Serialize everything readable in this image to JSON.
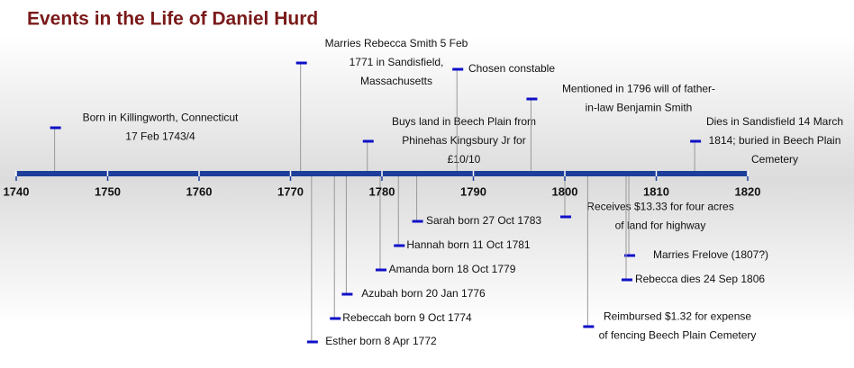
{
  "chart_data": {
    "type": "timeline",
    "title": "Events in the Life of Daniel Hurd",
    "xlim": [
      1740,
      1820
    ],
    "xticks": [
      1740,
      1750,
      1760,
      1770,
      1780,
      1790,
      1800,
      1810,
      1820
    ],
    "color": "#1c3f9a",
    "events": [
      {
        "x": 1744.2,
        "label": [
          "Born in Killingworth, Connecticut",
          "17 Feb 1743/4"
        ]
      },
      {
        "x": 1771.1,
        "label": [
          "Marries Rebecca Smith 5 Feb",
          "1771 in Sandisfield,",
          "Massachusetts"
        ]
      },
      {
        "x": 1778.4,
        "label": [
          "Buys land in Beech Plain from",
          "Phinehas Kingsbury Jr for",
          "£10/10"
        ]
      },
      {
        "x": 1788.2,
        "label": [
          "Chosen constable"
        ]
      },
      {
        "x": 1796.3,
        "label": [
          "Mentioned in 1796 will of father-",
          "in-law Benjamin Smith"
        ]
      },
      {
        "x": 1814.2,
        "label": [
          "Dies in Sandisfield 14 March",
          "1814; buried in Beech Plain",
          "Cemetery"
        ]
      },
      {
        "x": 1772.3,
        "label": [
          "Esther born 8 Apr 1772"
        ]
      },
      {
        "x": 1774.8,
        "label": [
          "Rebeccah born 9 Oct 1774"
        ]
      },
      {
        "x": 1776.1,
        "label": [
          "Azubah born 20 Jan 1776"
        ]
      },
      {
        "x": 1779.8,
        "label": [
          "Amanda born 18 Oct 1779"
        ]
      },
      {
        "x": 1781.8,
        "label": [
          "Hannah born 11 Oct 1781"
        ]
      },
      {
        "x": 1783.8,
        "label": [
          "Sarah born 27 Oct 1783"
        ]
      },
      {
        "x": 1800.0,
        "label": [
          "Receives $13.33 for four acres",
          "of land for highway"
        ]
      },
      {
        "x": 1802.5,
        "label": [
          "Reimbursed $1.32 for expense",
          "of fencing Beech Plain Cemetery"
        ]
      },
      {
        "x": 1807.0,
        "label": [
          "Marries Frelove (1807?)"
        ]
      },
      {
        "x": 1806.7,
        "label": [
          "Rebecca dies 24 Sep 1806"
        ]
      }
    ]
  }
}
